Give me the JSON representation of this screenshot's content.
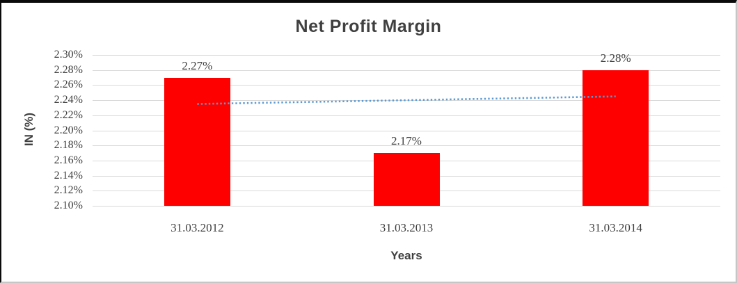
{
  "chart_data": {
    "type": "bar",
    "title": "Net Profit Margin",
    "xlabel": "Years",
    "ylabel": "IN (%)",
    "categories": [
      "31.03.2012",
      "31.03.2013",
      "31.03.2014"
    ],
    "values": [
      2.27,
      2.17,
      2.28
    ],
    "data_labels": [
      "2.27%",
      "2.17%",
      "2.28%"
    ],
    "ylim": [
      2.1,
      2.3
    ],
    "ytick_step": 0.02,
    "ytick_labels": [
      "2.30%",
      "2.28%",
      "2.26%",
      "2.24%",
      "2.22%",
      "2.20%",
      "2.18%",
      "2.16%",
      "2.14%",
      "2.12%",
      "2.10%"
    ],
    "grid": true,
    "legend": "none",
    "bar_color": "#ff0000",
    "gridline_color": "#d9d9d9",
    "text_color": "#404040",
    "title_color": "#404040",
    "trendline": {
      "style": "dotted",
      "color": "#5b9bd5",
      "start_value": 2.235,
      "end_value": 2.245
    }
  }
}
